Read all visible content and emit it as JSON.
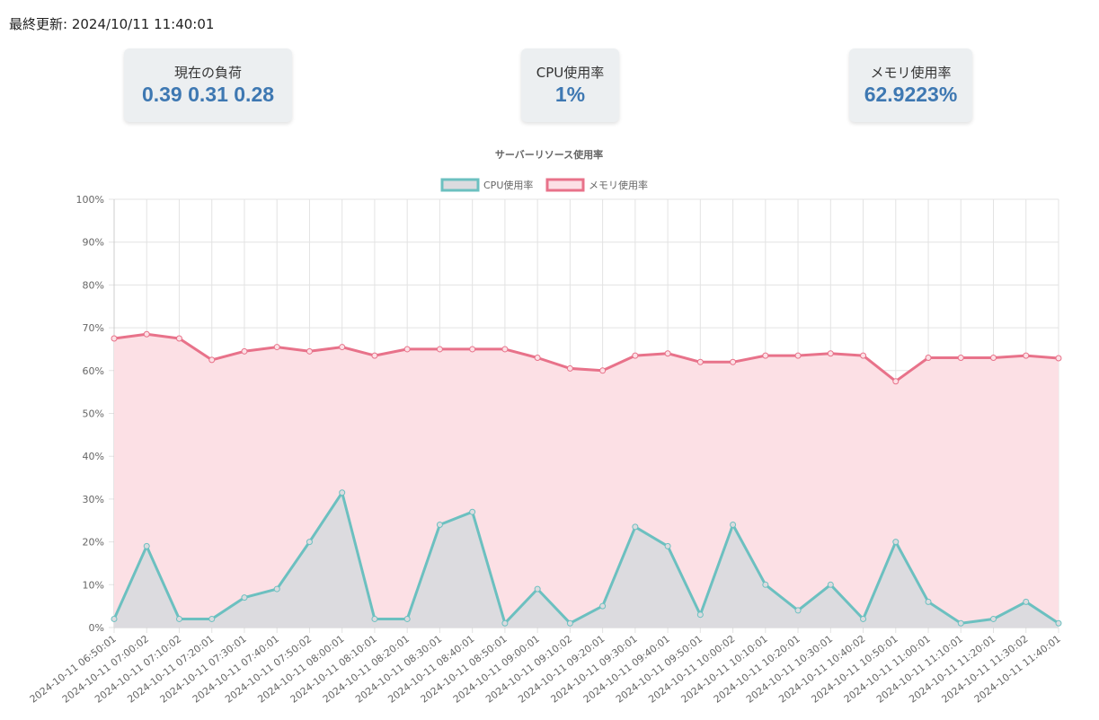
{
  "last_updated": {
    "label": "最終更新:",
    "value": "2024/10/11 11:40:01"
  },
  "stats": {
    "load": {
      "label": "現在の負荷",
      "value": "0.39 0.31 0.28"
    },
    "cpu": {
      "label": "CPU使用率",
      "value": "1%"
    },
    "memory": {
      "label": "メモリ使用率",
      "value": "62.9223%"
    }
  },
  "colors": {
    "cpu_line": "#6cc0c0",
    "cpu_fill": "#dcdbdf",
    "memory_line": "#e8728a",
    "memory_fill": "#fce0e5",
    "card_value": "#3e78b2"
  },
  "chart_data": {
    "type": "area",
    "title": "サーバーリソース使用率",
    "legend_position": "top",
    "grid": true,
    "ylim": [
      0,
      100
    ],
    "y_ticks": [
      "0%",
      "10%",
      "20%",
      "30%",
      "40%",
      "50%",
      "60%",
      "70%",
      "80%",
      "90%",
      "100%"
    ],
    "categories": [
      "2024-10-11 06:50:01",
      "2024-10-11 07:00:02",
      "2024-10-11 07:10:02",
      "2024-10-11 07:20:01",
      "2024-10-11 07:30:01",
      "2024-10-11 07:40:01",
      "2024-10-11 07:50:02",
      "2024-10-11 08:00:01",
      "2024-10-11 08:10:01",
      "2024-10-11 08:20:01",
      "2024-10-11 08:30:01",
      "2024-10-11 08:40:01",
      "2024-10-11 08:50:01",
      "2024-10-11 09:00:01",
      "2024-10-11 09:10:02",
      "2024-10-11 09:20:01",
      "2024-10-11 09:30:01",
      "2024-10-11 09:40:01",
      "2024-10-11 09:50:01",
      "2024-10-11 10:00:02",
      "2024-10-11 10:10:01",
      "2024-10-11 10:20:01",
      "2024-10-11 10:30:01",
      "2024-10-11 10:40:02",
      "2024-10-11 10:50:01",
      "2024-10-11 11:00:01",
      "2024-10-11 11:10:01",
      "2024-10-11 11:20:01",
      "2024-10-11 11:30:02",
      "2024-10-11 11:40:01"
    ],
    "series": [
      {
        "name": "CPU使用率",
        "values": [
          2,
          19,
          2,
          2,
          7,
          9,
          20,
          31.5,
          2,
          2,
          24,
          27,
          1,
          9,
          1,
          5,
          23.5,
          19,
          3,
          24,
          10,
          4,
          10,
          2,
          20,
          6,
          1,
          2,
          6,
          1
        ]
      },
      {
        "name": "メモリ使用率",
        "values": [
          67.5,
          68.5,
          67.5,
          62.5,
          64.5,
          65.5,
          64.5,
          65.5,
          63.5,
          65,
          65,
          65,
          65,
          63,
          60.5,
          60,
          63.5,
          64,
          62,
          62,
          63.5,
          63.5,
          64,
          63.5,
          57.5,
          63,
          63,
          63,
          63.5,
          62.9
        ]
      }
    ]
  }
}
